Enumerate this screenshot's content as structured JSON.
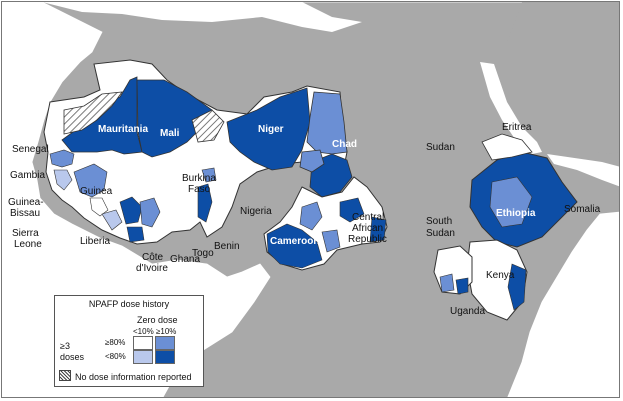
{
  "legend": {
    "title": "NPAFP dose history",
    "zero_dose": "Zero dose",
    "col_lt10": "<10%",
    "col_ge10": "≥10%",
    "row_ge80": "≥80%",
    "row_lt80": "<80%",
    "doses_line1": "≥3",
    "doses_line2": "doses",
    "no_info": "No dose information reported",
    "colors": {
      "ge3_ge80_zero_lt10": "#ffffff",
      "ge3_ge80_zero_ge10": "#6b8fd4",
      "ge3_lt80_zero_lt10": "#b9c8ec",
      "ge3_lt80_zero_ge10": "#0d4ea6"
    }
  },
  "labels": {
    "senegal": "Senegal",
    "gambia": "Gambia",
    "guinea_bissau_1": "Guinea-",
    "guinea_bissau_2": "Bissau",
    "sierra_leone_1": "Sierra",
    "sierra_leone_2": "Leone",
    "liberia": "Liberia",
    "guinea": "Guinea",
    "mauritania": "Mauritania",
    "mali": "Mali",
    "niger": "Niger",
    "chad": "Chad",
    "burkina_1": "Burkina",
    "burkina_2": "Faso",
    "cote_1": "Côte",
    "cote_2": "d'Ivoire",
    "ghana": "Ghana",
    "togo": "Togo",
    "benin": "Benin",
    "nigeria": "Nigeria",
    "cameroon": "Cameroon",
    "car_1": "Central",
    "car_2": "African",
    "car_3": "Republic",
    "sudan": "Sudan",
    "south_sudan_1": "South",
    "south_sudan_2": "Sudan",
    "eritrea": "Eritrea",
    "ethiopia": "Ethiopia",
    "somalia": "Somalia",
    "kenya": "Kenya",
    "uganda": "Uganda"
  }
}
